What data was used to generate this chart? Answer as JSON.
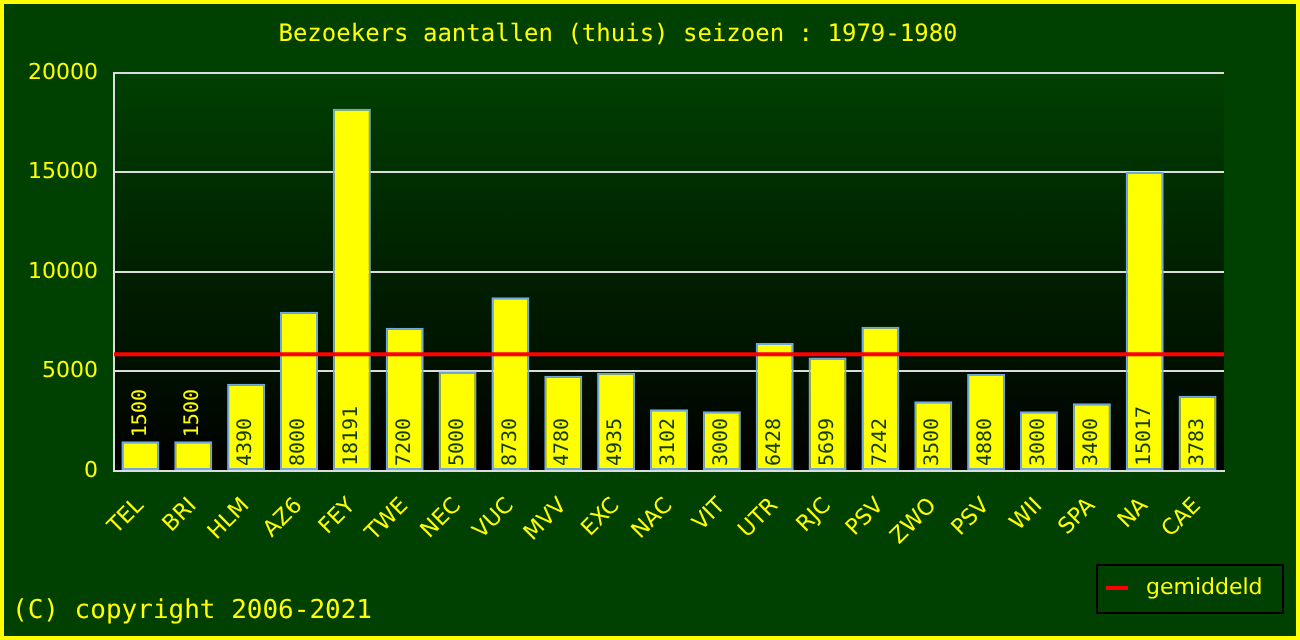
{
  "chart_data": {
    "type": "bar",
    "title": "Bezoekers aantallen (thuis) seizoen : 1979-1980",
    "categories": [
      "TEL",
      "BRI",
      "HLM",
      "AZ6",
      "FEY",
      "TWE",
      "NEC",
      "VUC",
      "MVV",
      "EXC",
      "NAC",
      "VIT",
      "UTR",
      "RJC",
      "PSV",
      "ZWO",
      "PSV",
      "WII",
      "SPA",
      "NA",
      "CAE"
    ],
    "values": [
      1500,
      1500,
      4390,
      8000,
      18191,
      7200,
      5000,
      8730,
      4780,
      4935,
      3102,
      3000,
      6428,
      5699,
      7242,
      3500,
      4880,
      3000,
      3400,
      15017,
      3783
    ],
    "color": "#ffff00",
    "data_labels": true,
    "ylim": [
      0,
      20000
    ],
    "yticks": [
      0,
      5000,
      10000,
      15000,
      20000
    ],
    "grid": "y",
    "ref_lines": [
      {
        "axis": "y",
        "value": 5870,
        "label": "gemiddeld",
        "color": "#ff0000"
      }
    ],
    "legend": "bottom right",
    "annotations": [
      "(C) copyright 2006-2021"
    ]
  }
}
